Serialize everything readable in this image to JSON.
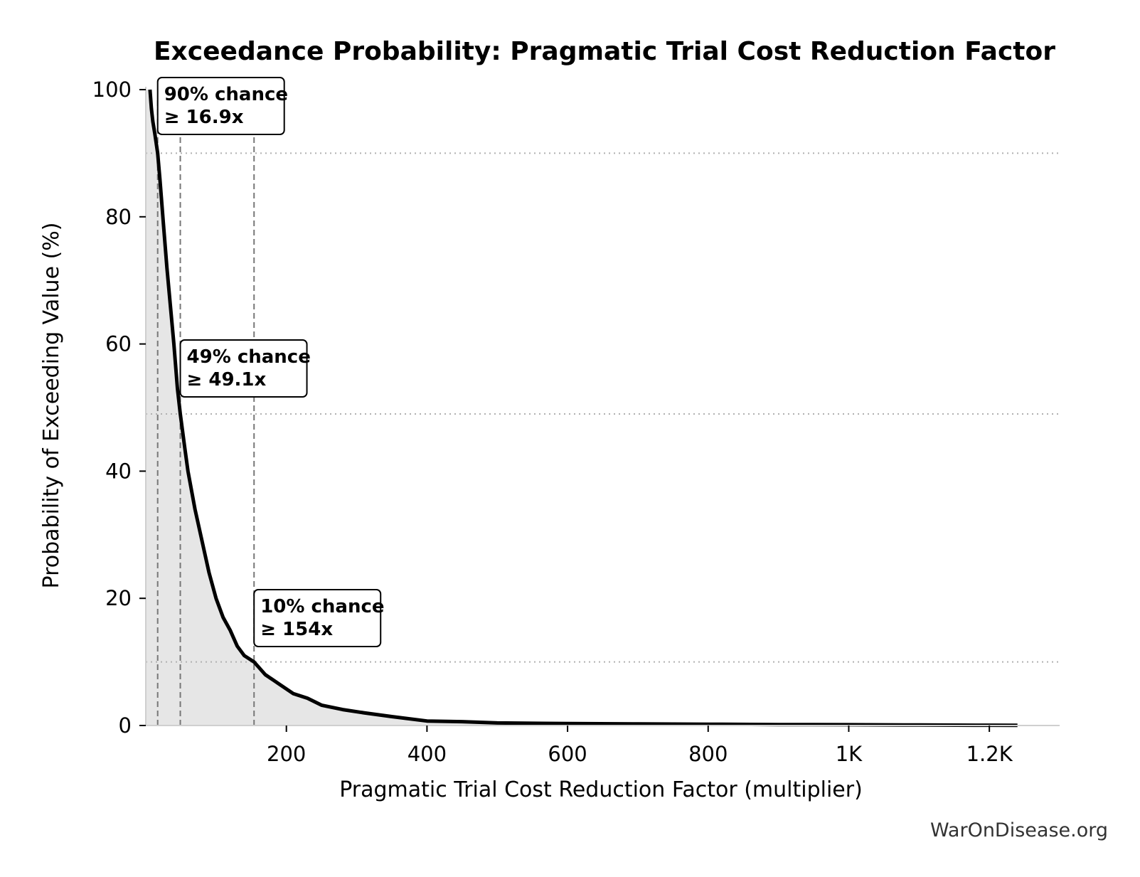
{
  "chart_data": {
    "type": "area",
    "title": "Exceedance Probability: Pragmatic Trial Cost Reduction Factor",
    "xlabel": "Pragmatic Trial Cost Reduction Factor (multiplier)",
    "ylabel": "Probability of Exceeding Value (%)",
    "xlim": [
      0,
      1300
    ],
    "ylim": [
      0,
      100
    ],
    "grid": false,
    "x_ticks": [
      {
        "value": 200,
        "label": "200"
      },
      {
        "value": 400,
        "label": "400"
      },
      {
        "value": 600,
        "label": "600"
      },
      {
        "value": 800,
        "label": "800"
      },
      {
        "value": 1000,
        "label": "1K"
      },
      {
        "value": 1200,
        "label": "1.2K"
      }
    ],
    "y_ticks": [
      {
        "value": 0,
        "label": "0"
      },
      {
        "value": 20,
        "label": "20"
      },
      {
        "value": 40,
        "label": "40"
      },
      {
        "value": 60,
        "label": "60"
      },
      {
        "value": 80,
        "label": "80"
      },
      {
        "value": 100,
        "label": "100"
      }
    ],
    "series": [
      {
        "color": "#000000",
        "fill": "#e6e6e6",
        "x": [
          6,
          8,
          10,
          13,
          16.9,
          20,
          25,
          30,
          35,
          40,
          45,
          49.1,
          55,
          60,
          70,
          80,
          90,
          100,
          110,
          120,
          130,
          140,
          154,
          170,
          190,
          210,
          230,
          250,
          280,
          310,
          350,
          400,
          450,
          500,
          600,
          700,
          800,
          900,
          1000,
          1100,
          1180,
          1240
        ],
        "y": [
          100,
          97,
          95,
          93,
          90,
          86,
          79,
          72,
          66,
          60,
          53,
          49,
          44,
          40,
          34,
          29,
          24,
          20,
          17,
          15,
          12.5,
          11,
          10,
          8,
          6.5,
          5,
          4.3,
          3.2,
          2.5,
          2,
          1.4,
          0.7,
          0.6,
          0.4,
          0.3,
          0.25,
          0.2,
          0.15,
          0.12,
          0.08,
          0.05,
          0.03
        ]
      }
    ],
    "reference_lines": {
      "vertical_x": [
        16.9,
        49.1,
        154
      ],
      "horizontal_y": [
        90,
        49,
        10
      ]
    },
    "annotations": [
      {
        "line1": "90% chance",
        "line2": "≥ 16.9x",
        "x": 16.9,
        "y": 90
      },
      {
        "line1": "49% chance",
        "line2": "≥ 49.1x",
        "x": 49.1,
        "y": 49
      },
      {
        "line1": "10% chance",
        "line2": "≥ 154x",
        "x": 154,
        "y": 10
      }
    ]
  },
  "watermark": "WarOnDisease.org"
}
